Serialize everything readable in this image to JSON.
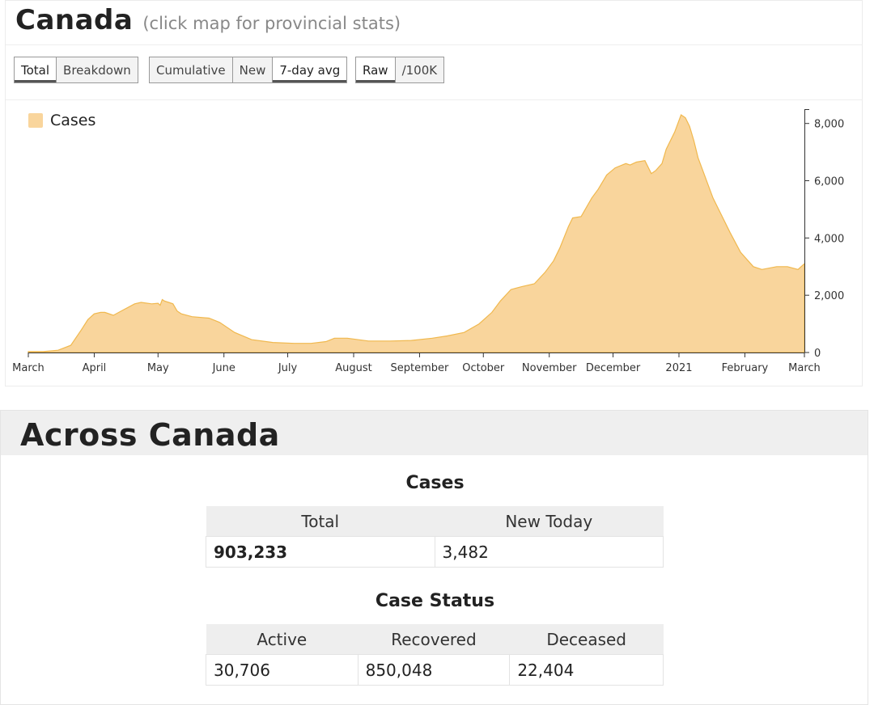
{
  "header": {
    "title": "Canada",
    "subtitle": "(click map for provincial stats)"
  },
  "toolbar": {
    "group1": [
      {
        "label": "Total",
        "active": true
      },
      {
        "label": "Breakdown",
        "active": false
      }
    ],
    "group2": [
      {
        "label": "Cumulative",
        "active": false
      },
      {
        "label": "New",
        "active": false
      },
      {
        "label": "7-day avg",
        "active": true
      }
    ],
    "group3": [
      {
        "label": "Raw",
        "active": true
      },
      {
        "label": "/100K",
        "active": false
      }
    ]
  },
  "colors": {
    "fill": "#f9d59c",
    "stroke": "#f0b84e",
    "axis": "#333333"
  },
  "chart_data": {
    "type": "area",
    "title": "",
    "xlabel": "",
    "ylabel": "",
    "ylim": [
      0,
      8500
    ],
    "legend": "top-left",
    "grid": false,
    "yticks": [
      0,
      2000,
      4000,
      6000,
      8000
    ],
    "ytick_labels": [
      "0",
      "2,000",
      "4,000",
      "6,000",
      "8,000"
    ],
    "xticks": [
      "March",
      "April",
      "May",
      "June",
      "July",
      "August",
      "September",
      "October",
      "November",
      "December",
      "2021",
      "February",
      "March"
    ],
    "xtick_days": [
      0,
      31,
      61,
      92,
      122,
      153,
      184,
      214,
      245,
      275,
      306,
      337,
      365
    ],
    "series": [
      {
        "name": "Cases",
        "x": [
          0,
          7,
          14,
          20,
          25,
          28,
          31,
          34,
          36,
          40,
          45,
          50,
          53,
          58,
          61,
          62,
          63,
          64,
          66,
          68,
          70,
          72,
          77,
          85,
          90,
          97,
          105,
          115,
          125,
          133,
          140,
          144,
          150,
          160,
          170,
          180,
          190,
          197,
          205,
          212,
          218,
          222,
          227,
          232,
          238,
          243,
          247,
          250,
          254,
          256,
          260,
          265,
          268,
          272,
          276,
          281,
          283,
          286,
          290,
          293,
          295,
          298,
          300,
          304,
          307,
          309,
          311,
          313,
          315,
          318,
          322,
          326,
          330,
          335,
          341,
          345,
          352,
          357,
          362,
          365
        ],
        "y": [
          30,
          30,
          80,
          250,
          800,
          1150,
          1350,
          1400,
          1400,
          1300,
          1500,
          1700,
          1750,
          1700,
          1720,
          1650,
          1850,
          1800,
          1750,
          1700,
          1450,
          1350,
          1250,
          1200,
          1050,
          700,
          450,
          350,
          320,
          320,
          380,
          500,
          500,
          400,
          400,
          420,
          500,
          580,
          700,
          1000,
          1400,
          1800,
          2200,
          2300,
          2400,
          2800,
          3200,
          3650,
          4400,
          4700,
          4750,
          5400,
          5700,
          6200,
          6450,
          6600,
          6550,
          6650,
          6700,
          6250,
          6350,
          6600,
          7100,
          7700,
          8300,
          8200,
          7900,
          7400,
          6800,
          6200,
          5400,
          4800,
          4200,
          3500,
          3000,
          2900,
          3000,
          3000,
          2900,
          3100
        ]
      }
    ]
  },
  "across": {
    "title": "Across Canada",
    "cases": {
      "title": "Cases",
      "headers": [
        "Total",
        "New Today"
      ],
      "values": [
        "903,233",
        "3,482"
      ]
    },
    "status": {
      "title": "Case Status",
      "headers": [
        "Active",
        "Recovered",
        "Deceased"
      ],
      "values": [
        "30,706",
        "850,048",
        "22,404"
      ]
    }
  }
}
